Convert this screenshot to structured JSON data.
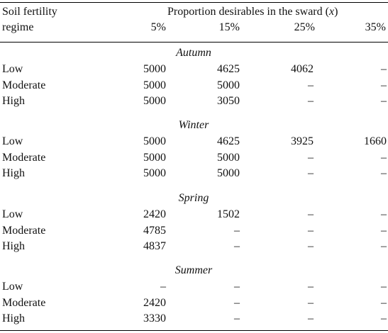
{
  "table": {
    "header": {
      "row_label_line1": "Soil fertility",
      "row_label_line2": "regime",
      "group_label_prefix": "Proportion desirables in the sward (",
      "group_label_var": "x",
      "group_label_suffix": ")",
      "columns": [
        "5%",
        "15%",
        "25%",
        "35%"
      ]
    },
    "sections": [
      {
        "season": "Autumn",
        "rows": [
          {
            "label": "Low",
            "values": [
              "5000",
              "4625",
              "4062",
              "–"
            ]
          },
          {
            "label": "Moderate",
            "values": [
              "5000",
              "5000",
              "–",
              "–"
            ]
          },
          {
            "label": "High",
            "values": [
              "5000",
              "3050",
              "–",
              "–"
            ]
          }
        ]
      },
      {
        "season": "Winter",
        "rows": [
          {
            "label": "Low",
            "values": [
              "5000",
              "4625",
              "3925",
              "1660"
            ]
          },
          {
            "label": "Moderate",
            "values": [
              "5000",
              "5000",
              "–",
              "–"
            ]
          },
          {
            "label": "High",
            "values": [
              "5000",
              "5000",
              "–",
              "–"
            ]
          }
        ]
      },
      {
        "season": "Spring",
        "rows": [
          {
            "label": "Low",
            "values": [
              "2420",
              "1502",
              "–",
              "–"
            ]
          },
          {
            "label": "Moderate",
            "values": [
              "4785",
              "–",
              "–",
              "–"
            ]
          },
          {
            "label": "High",
            "values": [
              "4837",
              "–",
              "–",
              "–"
            ]
          }
        ]
      },
      {
        "season": "Summer",
        "rows": [
          {
            "label": "Low",
            "values": [
              "–",
              "–",
              "–",
              "–"
            ]
          },
          {
            "label": "Moderate",
            "values": [
              "2420",
              "–",
              "–",
              "–"
            ]
          },
          {
            "label": "High",
            "values": [
              "3330",
              "–",
              "–",
              "–"
            ]
          }
        ]
      }
    ]
  }
}
